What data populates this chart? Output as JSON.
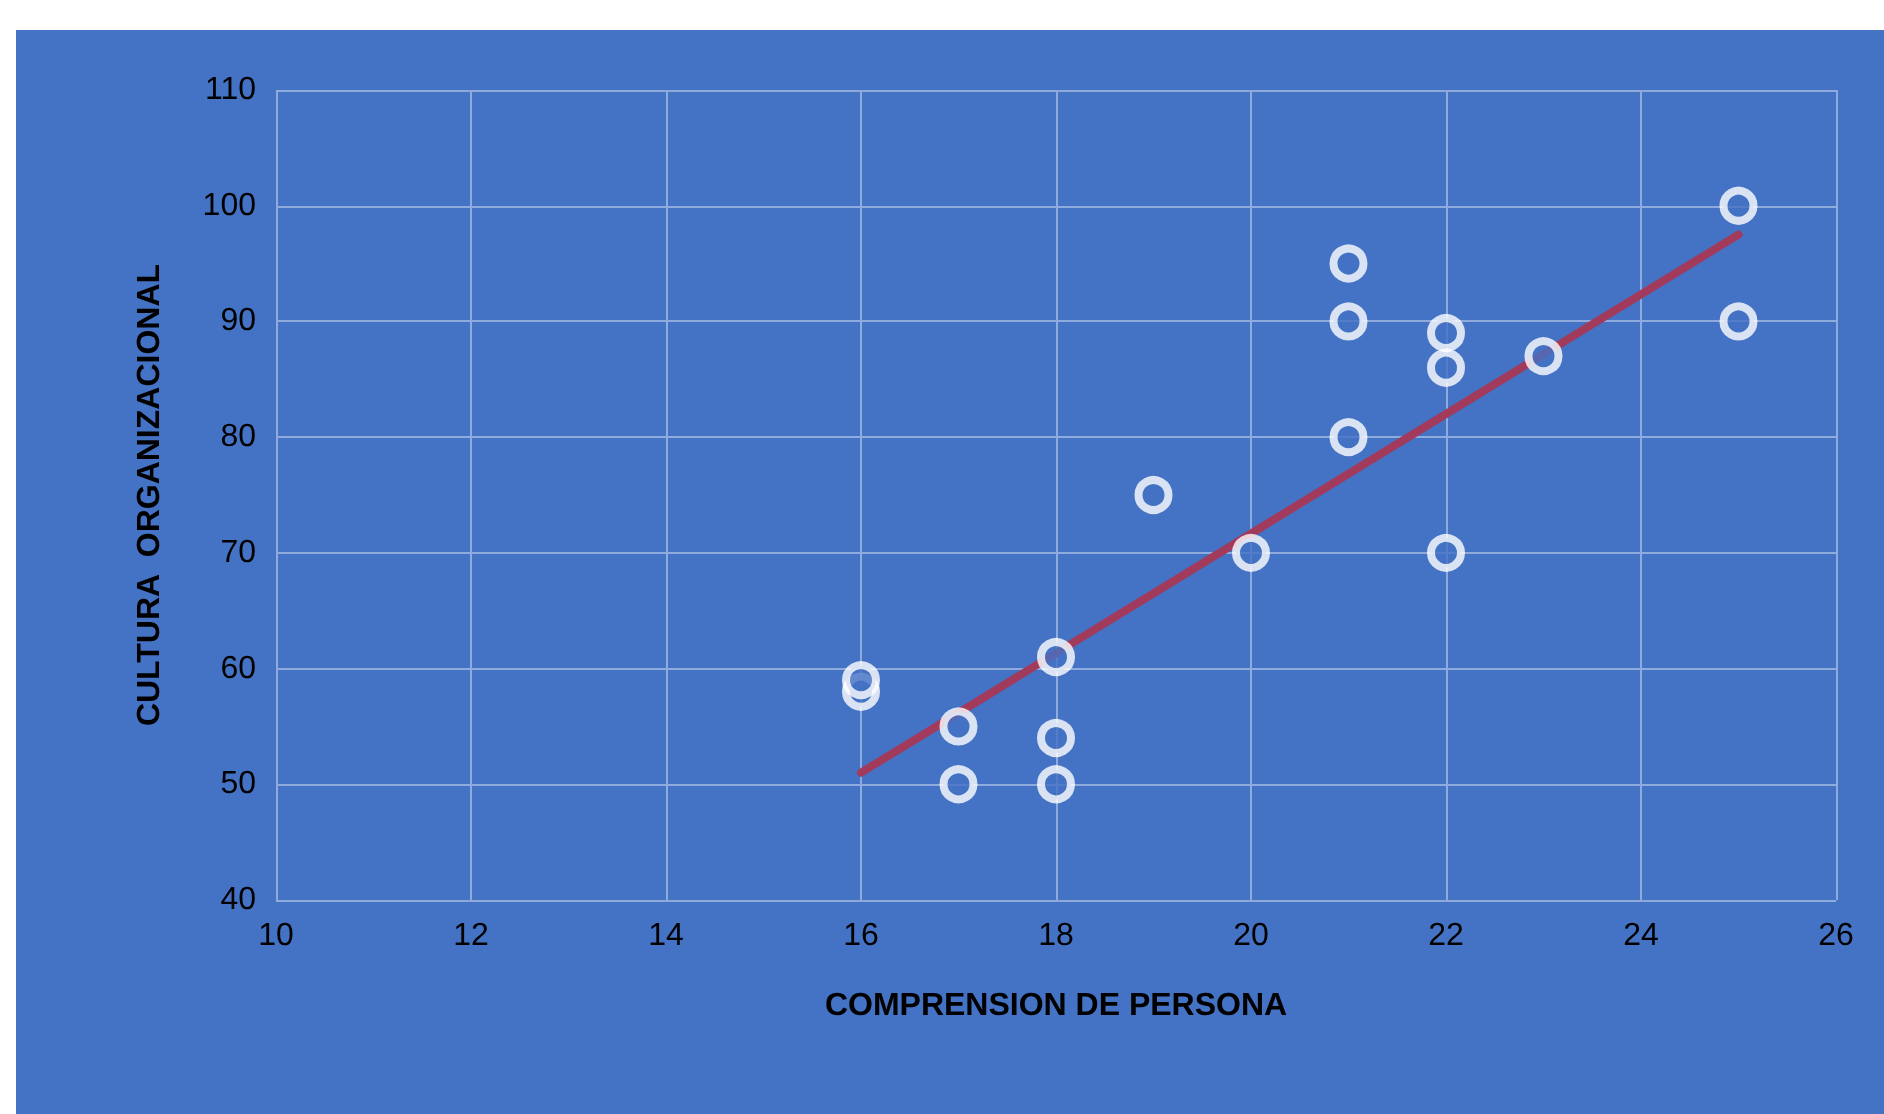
{
  "chart_data": {
    "type": "scatter",
    "xlabel": "COMPRENSION DE PERSONA",
    "ylabel": "CULTURA  ORGANIZACIONAL",
    "xlim": [
      10,
      26
    ],
    "xticks": [
      10,
      12,
      14,
      16,
      18,
      20,
      22,
      24,
      26
    ],
    "ylim": [
      40,
      110
    ],
    "yticks": [
      40,
      50,
      60,
      70,
      80,
      90,
      100,
      110
    ],
    "grid": true,
    "marker": "circle",
    "series": [
      {
        "color": "#ffffff",
        "x": [
          16,
          16,
          17,
          17,
          18,
          18,
          18,
          19,
          20,
          21,
          21,
          21,
          22,
          22,
          22,
          23,
          25,
          25
        ],
        "values": [
          58,
          59,
          55,
          50,
          61,
          54,
          50,
          75,
          70,
          95,
          90,
          80,
          89,
          86,
          70,
          87,
          100,
          90
        ]
      },
      {
        "type": "line",
        "marker": "none",
        "color": "#a23a5c",
        "x": [
          16,
          25
        ],
        "values": [
          51,
          97.5
        ]
      }
    ]
  }
}
